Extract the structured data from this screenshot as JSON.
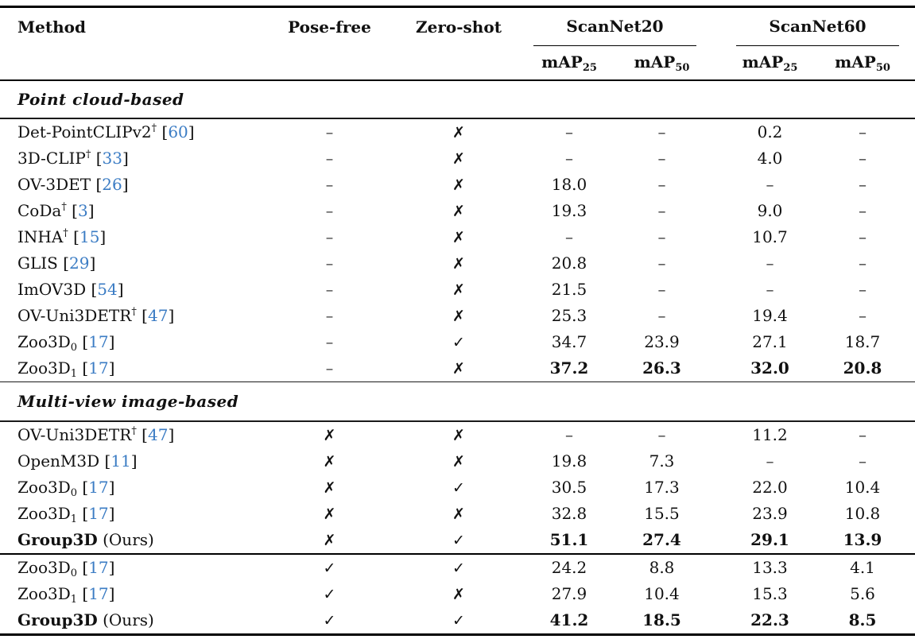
{
  "table": {
    "headers": {
      "method": "Method",
      "pose_free": "Pose-free",
      "zero_shot": "Zero-shot",
      "groups": [
        {
          "label": "ScanNet20",
          "subcolumns": [
            {
              "base": "mAP",
              "sub": "25"
            },
            {
              "base": "mAP",
              "sub": "50"
            }
          ]
        },
        {
          "label": "ScanNet60",
          "subcolumns": [
            {
              "base": "mAP",
              "sub": "25"
            },
            {
              "base": "mAP",
              "sub": "50"
            }
          ]
        }
      ]
    },
    "symbols": {
      "check": "✓",
      "cross": "✗",
      "dash": "–"
    },
    "colors": {
      "citation_blue": "#3b7cc4",
      "text": "#111111"
    },
    "sections": [
      {
        "title": "Point cloud-based",
        "rows": [
          {
            "method": {
              "name": "Det-PointCLIPv2",
              "sup": "†",
              "cite": "60"
            },
            "pose": "dash",
            "zero": "cross",
            "values": [
              "–",
              "–",
              "0.2",
              "–"
            ],
            "values_bold": false
          },
          {
            "method": {
              "name": "3D-CLIP",
              "sup": "†",
              "cite": "33"
            },
            "pose": "dash",
            "zero": "cross",
            "values": [
              "–",
              "–",
              "4.0",
              "–"
            ],
            "values_bold": false
          },
          {
            "method": {
              "name": "OV-3DET",
              "cite": "26"
            },
            "pose": "dash",
            "zero": "cross",
            "values": [
              "18.0",
              "–",
              "–",
              "–"
            ],
            "values_bold": false
          },
          {
            "method": {
              "name": "CoDa",
              "sup": "†",
              "cite": "3"
            },
            "pose": "dash",
            "zero": "cross",
            "values": [
              "19.3",
              "–",
              "9.0",
              "–"
            ],
            "values_bold": false
          },
          {
            "method": {
              "name": "INHA",
              "sup": "†",
              "cite": "15"
            },
            "pose": "dash",
            "zero": "cross",
            "values": [
              "–",
              "–",
              "10.7",
              "–"
            ],
            "values_bold": false
          },
          {
            "method": {
              "name": "GLIS",
              "cite": "29"
            },
            "pose": "dash",
            "zero": "cross",
            "values": [
              "20.8",
              "–",
              "–",
              "–"
            ],
            "values_bold": false
          },
          {
            "method": {
              "name": "ImOV3D",
              "cite": "54"
            },
            "pose": "dash",
            "zero": "cross",
            "values": [
              "21.5",
              "–",
              "–",
              "–"
            ],
            "values_bold": false
          },
          {
            "method": {
              "name": "OV-Uni3DETR",
              "sup": "†",
              "cite": "47"
            },
            "pose": "dash",
            "zero": "cross",
            "values": [
              "25.3",
              "–",
              "19.4",
              "–"
            ],
            "values_bold": false
          },
          {
            "method": {
              "name": "Zoo3D",
              "sub": "0",
              "cite": "17"
            },
            "pose": "dash",
            "zero": "check",
            "values": [
              "34.7",
              "23.9",
              "27.1",
              "18.7"
            ],
            "values_bold": false
          },
          {
            "method": {
              "name": "Zoo3D",
              "sub": "1",
              "cite": "17"
            },
            "pose": "dash",
            "zero": "cross",
            "values": [
              "37.2",
              "26.3",
              "32.0",
              "20.8"
            ],
            "values_bold": true
          }
        ]
      },
      {
        "title": "Multi-view image-based",
        "rows": [
          {
            "method": {
              "name": "OV-Uni3DETR",
              "sup": "†",
              "cite": "47"
            },
            "pose": "cross",
            "zero": "cross",
            "values": [
              "–",
              "–",
              "11.2",
              "–"
            ],
            "values_bold": false
          },
          {
            "method": {
              "name": "OpenM3D",
              "cite": "11"
            },
            "pose": "cross",
            "zero": "cross",
            "values": [
              "19.8",
              "7.3",
              "–",
              "–"
            ],
            "values_bold": false
          },
          {
            "method": {
              "name": "Zoo3D",
              "sub": "0",
              "cite": "17"
            },
            "pose": "cross",
            "zero": "check",
            "values": [
              "30.5",
              "17.3",
              "22.0",
              "10.4"
            ],
            "values_bold": false
          },
          {
            "method": {
              "name": "Zoo3D",
              "sub": "1",
              "cite": "17"
            },
            "pose": "cross",
            "zero": "cross",
            "values": [
              "32.8",
              "15.5",
              "23.9",
              "10.8"
            ],
            "values_bold": false
          },
          {
            "method": {
              "name": "Group3D",
              "bold": true,
              "suffix": " (Ours)"
            },
            "pose": "cross",
            "zero": "check",
            "values": [
              "51.1",
              "27.4",
              "29.1",
              "13.9"
            ],
            "values_bold": true
          }
        ]
      },
      {
        "title": null,
        "rows": [
          {
            "method": {
              "name": "Zoo3D",
              "sub": "0",
              "cite": "17"
            },
            "pose": "check",
            "zero": "check",
            "values": [
              "24.2",
              "8.8",
              "13.3",
              "4.1"
            ],
            "values_bold": false
          },
          {
            "method": {
              "name": "Zoo3D",
              "sub": "1",
              "cite": "17"
            },
            "pose": "check",
            "zero": "cross",
            "values": [
              "27.9",
              "10.4",
              "15.3",
              "5.6"
            ],
            "values_bold": false
          },
          {
            "method": {
              "name": "Group3D",
              "bold": true,
              "suffix": " (Ours)"
            },
            "pose": "check",
            "zero": "check",
            "values": [
              "41.2",
              "18.5",
              "22.3",
              "8.5"
            ],
            "values_bold": true
          }
        ]
      }
    ]
  }
}
